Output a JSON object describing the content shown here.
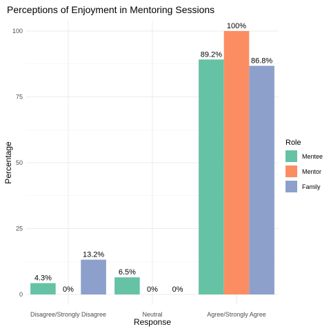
{
  "chart_data": {
    "type": "bar",
    "title": "Perceptions of Enjoyment in Mentoring Sessions",
    "xlabel": "Response",
    "ylabel": "Percentage",
    "categories": [
      "Disagree/Strongly Disagree",
      "Neutral",
      "Agree/Strongly Agree"
    ],
    "series": [
      {
        "name": "Mentee",
        "color": "#66C2A5",
        "values": [
          4.3,
          6.5,
          89.2
        ],
        "labels": [
          "4.3%",
          "6.5%",
          "89.2%"
        ]
      },
      {
        "name": "Mentor",
        "color": "#FC8D62",
        "values": [
          0,
          0,
          100
        ],
        "labels": [
          "0%",
          "0%",
          "100%"
        ]
      },
      {
        "name": "Family",
        "color": "#8DA0CB",
        "values": [
          13.2,
          0,
          86.8
        ],
        "labels": [
          "13.2%",
          "0%",
          "86.8%"
        ]
      }
    ],
    "ylim": [
      0,
      100
    ],
    "yticks": [
      0,
      25,
      50,
      75,
      100
    ],
    "grid": true,
    "legend": {
      "title": "Role",
      "position": "right"
    }
  }
}
